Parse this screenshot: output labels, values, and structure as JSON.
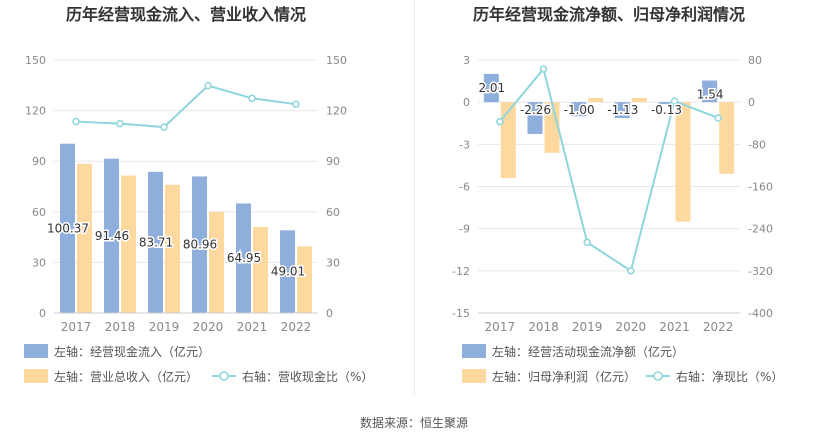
{
  "source_label": "数据来源：恒生聚源",
  "colors": {
    "bar_blue": "#8eaedb",
    "bar_orange": "#fdd9a0",
    "line_teal": "#8ed6dc",
    "axis_text": "#888888",
    "grid": "#e8e8e8",
    "title": "#333333"
  },
  "chart_data": [
    {
      "type": "bar",
      "title": "历年经营现金流入、营业收入情况",
      "categories": [
        "2017",
        "2018",
        "2019",
        "2020",
        "2021",
        "2022"
      ],
      "y_left": {
        "ticks": [
          "150",
          "120",
          "90",
          "60",
          "30",
          "0"
        ],
        "min": 0,
        "max": 150
      },
      "y_right": {
        "ticks": [
          "150",
          "120",
          "90",
          "60",
          "30",
          "0"
        ],
        "min": 0,
        "max": 150
      },
      "series": [
        {
          "name": "左轴：经营现金流入（亿元）",
          "kind": "bar",
          "axis": "left",
          "color": "#8eaedb",
          "values": [
            100.37,
            91.46,
            83.71,
            80.96,
            64.95,
            49.01
          ],
          "labels": [
            "100.37",
            "91.46",
            "83.71",
            "80.96",
            "64.95",
            "49.01"
          ]
        },
        {
          "name": "左轴：营业总收入（亿元）",
          "kind": "bar",
          "axis": "left",
          "color": "#fdd9a0",
          "values": [
            88.5,
            81.5,
            76.0,
            60.0,
            51.0,
            39.5
          ]
        },
        {
          "name": "右轴：营收现金比（%）",
          "kind": "line",
          "axis": "right",
          "color": "#8ed6dc",
          "values": [
            113.5,
            112.3,
            110.2,
            134.8,
            127.3,
            123.8
          ]
        }
      ]
    },
    {
      "type": "bar",
      "title": "历年经营现金流净额、归母净利润情况",
      "categories": [
        "2017",
        "2018",
        "2019",
        "2020",
        "2021",
        "2022"
      ],
      "y_left": {
        "ticks": [
          "3",
          "0",
          "-3",
          "-6",
          "-9",
          "-12",
          "-15"
        ],
        "min": -15,
        "max": 3
      },
      "y_right": {
        "ticks": [
          "80",
          "0",
          "-80",
          "-160",
          "-240",
          "-320",
          "-400"
        ],
        "min": -400,
        "max": 80
      },
      "series": [
        {
          "name": "左轴：经营活动现金流净额（亿元）",
          "kind": "bar",
          "axis": "left",
          "color": "#8eaedb",
          "values": [
            2.01,
            -2.26,
            -1.0,
            -1.13,
            -0.13,
            1.54
          ],
          "labels": [
            "2.01",
            "-2.26",
            "-1.00",
            "-1.13",
            "-0.13",
            "1.54"
          ]
        },
        {
          "name": "左轴：归母净利润（亿元）",
          "kind": "bar",
          "axis": "left",
          "color": "#fdd9a0",
          "values": [
            -5.4,
            -3.6,
            0.3,
            0.3,
            -8.5,
            -5.1
          ]
        },
        {
          "name": "右轴：净现比（%）",
          "kind": "line",
          "axis": "right",
          "color": "#8ed6dc",
          "values": [
            -37,
            63,
            -266,
            -320,
            2,
            -30
          ]
        }
      ]
    }
  ]
}
